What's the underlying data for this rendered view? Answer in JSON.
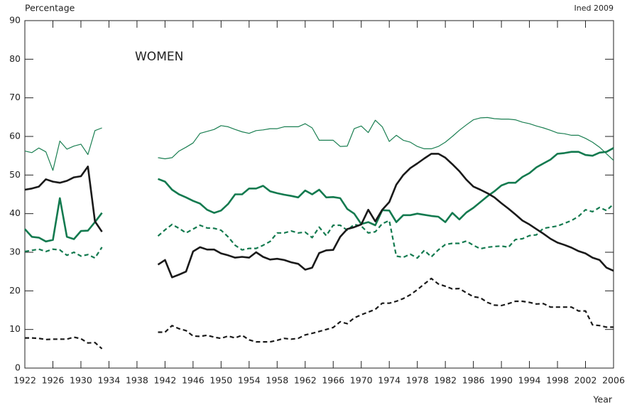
{
  "chart_data": {
    "type": "line",
    "y_label": "Percentage",
    "x_label": "Year",
    "source": "Ined 2009",
    "annotation": "WOMEN",
    "x": [
      1922,
      1923,
      1924,
      1925,
      1926,
      1927,
      1928,
      1929,
      1930,
      1931,
      1932,
      1933,
      1934,
      1935,
      1936,
      1937,
      1938,
      1939,
      1940,
      1941,
      1942,
      1943,
      1944,
      1945,
      1946,
      1947,
      1948,
      1949,
      1950,
      1951,
      1952,
      1953,
      1954,
      1955,
      1956,
      1957,
      1958,
      1959,
      1960,
      1961,
      1962,
      1963,
      1964,
      1965,
      1966,
      1967,
      1968,
      1969,
      1970,
      1971,
      1972,
      1973,
      1974,
      1975,
      1976,
      1977,
      1978,
      1979,
      1980,
      1981,
      1982,
      1983,
      1984,
      1985,
      1986,
      1987,
      1988,
      1989,
      1990,
      1991,
      1992,
      1993,
      1994,
      1995,
      1996,
      1997,
      1998,
      1999,
      2000,
      2001,
      2002,
      2003,
      2004,
      2005,
      2006
    ],
    "series": [
      {
        "color": "#1b7f52",
        "width": 1.2,
        "dashed": false,
        "values": [
          56.2,
          55.8,
          57,
          56,
          51.2,
          58.8,
          56.7,
          57.5,
          58,
          55.3,
          61.5,
          62.2,
          null,
          null,
          null,
          null,
          null,
          null,
          null,
          54.5,
          54.2,
          54.5,
          56.2,
          57.2,
          58.3,
          60.8,
          61.3,
          61.8,
          62.8,
          62.5,
          61.8,
          61.2,
          60.8,
          61.5,
          61.7,
          62,
          62,
          62.5,
          62.5,
          62.5,
          63.3,
          62.2,
          59,
          59,
          59,
          57.4,
          57.5,
          62,
          62.7,
          61,
          64.2,
          62.5,
          58.7,
          60.3,
          59,
          58.5,
          57.4,
          56.8,
          56.8,
          57.4,
          58.5,
          60,
          61.6,
          63,
          64.3,
          64.8,
          64.9,
          64.6,
          64.5,
          64.5,
          64.3,
          63.7,
          63.3,
          62.7,
          62.2,
          61.6,
          60.9,
          60.7,
          60.3,
          60.3,
          59.5,
          58.5,
          57.2,
          55.5,
          53.8
        ]
      },
      {
        "color": "#137a4f",
        "width": 2.6,
        "dashed": false,
        "values": [
          36,
          34,
          33.8,
          32.8,
          33.2,
          44,
          34,
          33.4,
          35.5,
          35.6,
          37.8,
          40.2,
          null,
          null,
          null,
          null,
          null,
          null,
          null,
          49,
          48.3,
          46.2,
          45,
          44.2,
          43.3,
          42.6,
          41,
          40.2,
          40.8,
          42.5,
          45,
          45,
          46.5,
          46.5,
          47.2,
          45.8,
          45.3,
          44.9,
          44.6,
          44.2,
          46,
          45,
          46.2,
          44.2,
          44.3,
          44,
          41.2,
          40,
          37.3,
          37.8,
          37,
          40.9,
          40.8,
          37.8,
          39.6,
          39.6,
          40,
          39.7,
          39.4,
          39.2,
          37.8,
          40.2,
          38.5,
          40.3,
          41.5,
          43,
          44.5,
          45.8,
          47.3,
          48,
          48,
          49.5,
          50.5,
          52,
          53,
          54,
          55.5,
          55.7,
          56,
          56,
          55.2,
          55,
          55.8,
          56,
          57
        ]
      },
      {
        "color": "#137a4f",
        "width": 2.2,
        "dashed": true,
        "values": [
          30.2,
          30.5,
          30.8,
          30.2,
          30.8,
          30.6,
          29.2,
          30,
          29,
          29.4,
          28.5,
          31.3,
          null,
          null,
          null,
          null,
          null,
          null,
          null,
          34.2,
          35.8,
          37.2,
          36.2,
          35,
          36,
          37,
          36.3,
          36.2,
          35.7,
          34,
          31.8,
          30.6,
          31,
          31,
          31.8,
          32.8,
          35,
          35,
          35.5,
          35,
          35.2,
          33.8,
          36.5,
          34.3,
          37,
          37,
          35.7,
          37.2,
          36.8,
          35,
          35.3,
          37.4,
          38.2,
          29,
          28.7,
          29.5,
          28.5,
          30.5,
          28.8,
          30.6,
          32,
          32.3,
          32.3,
          32.9,
          31.8,
          30.9,
          31.3,
          31.5,
          31.6,
          31.3,
          33.3,
          33.5,
          34.3,
          34.5,
          36.2,
          36.5,
          36.8,
          37.5,
          38.2,
          39.3,
          41,
          40.5,
          41.6,
          40.8,
          42.5
        ]
      },
      {
        "color": "#1a1a1a",
        "width": 2.6,
        "dashed": false,
        "values": [
          46.2,
          46.5,
          47,
          48.9,
          48.3,
          48,
          48.5,
          49.4,
          49.7,
          52.2,
          38,
          35.3,
          null,
          null,
          null,
          null,
          null,
          null,
          null,
          26.8,
          28,
          23.5,
          24.2,
          25,
          30.2,
          31.3,
          30.7,
          30.7,
          29.7,
          29.2,
          28.6,
          28.8,
          28.6,
          30,
          28.8,
          28.1,
          28.3,
          28,
          27.4,
          27,
          25.5,
          26,
          29.8,
          30.5,
          30.6,
          34,
          36,
          36.5,
          37.2,
          41,
          38,
          41,
          43,
          47.5,
          50,
          51.8,
          53,
          54.3,
          55.5,
          55.5,
          54.5,
          52.8,
          51,
          48.8,
          47,
          46.2,
          45.3,
          44.2,
          42.7,
          41.3,
          39.8,
          38.2,
          37.2,
          36,
          34.8,
          33.5,
          32.5,
          31.9,
          31.2,
          30.3,
          29.7,
          28.6,
          28,
          26,
          25.2
        ]
      },
      {
        "color": "#1a1a1a",
        "width": 2.2,
        "dashed": true,
        "values": [
          7.8,
          7.8,
          7.7,
          7.4,
          7.5,
          7.5,
          7.5,
          8,
          7.6,
          6.5,
          6.6,
          5,
          null,
          null,
          null,
          null,
          null,
          null,
          null,
          9.3,
          9.3,
          11,
          10.2,
          9.7,
          8.3,
          8.2,
          8.5,
          8,
          7.7,
          8.3,
          7.8,
          8.5,
          7.3,
          6.8,
          6.8,
          6.8,
          7.2,
          7.7,
          7.5,
          7.7,
          8.6,
          9,
          9.5,
          10,
          10.5,
          12,
          11.5,
          13,
          13.8,
          14.5,
          15.2,
          16.8,
          16.8,
          17.3,
          18,
          19,
          20.3,
          21.8,
          23.2,
          21.8,
          21.2,
          20.5,
          20.6,
          19.5,
          18.5,
          18.2,
          17,
          16.3,
          16.2,
          16.7,
          17.3,
          17.3,
          17,
          16.6,
          16.7,
          15.8,
          15.8,
          15.8,
          15.8,
          14.8,
          14.8,
          11.2,
          11,
          10.6,
          10.6
        ]
      }
    ],
    "xlim": [
      1922,
      2006
    ],
    "ylim": [
      0,
      90
    ],
    "xticks": [
      1922,
      1926,
      1930,
      1934,
      1938,
      1942,
      1946,
      1950,
      1954,
      1958,
      1962,
      1966,
      1970,
      1974,
      1978,
      1982,
      1986,
      1990,
      1994,
      1998,
      2002,
      2006
    ],
    "yticks": [
      0,
      10,
      20,
      30,
      40,
      50,
      60,
      70,
      80,
      90
    ]
  }
}
